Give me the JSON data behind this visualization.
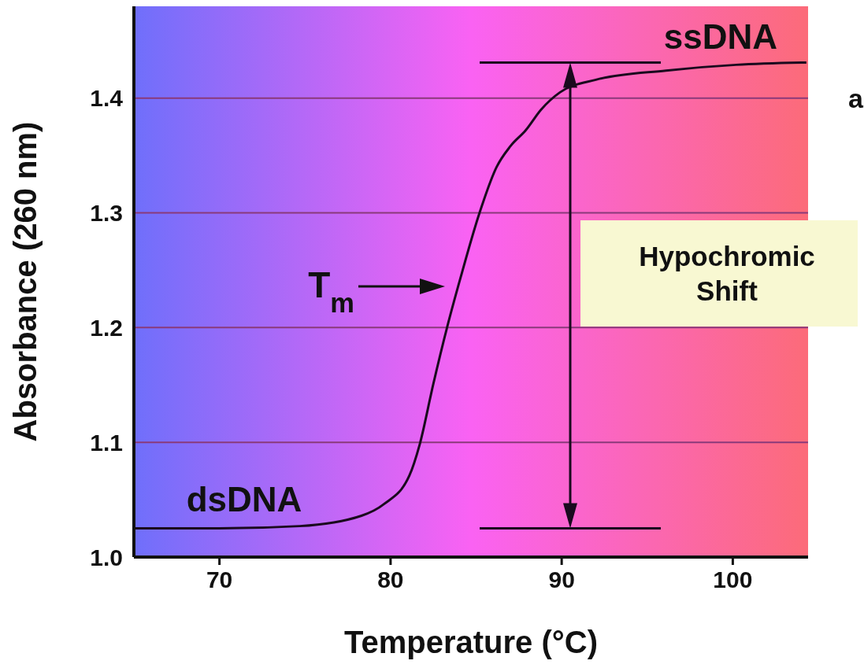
{
  "chart_data": {
    "type": "line",
    "xlabel": "Temperature (°C)",
    "ylabel": "Absorbance (260 nm)",
    "x": [
      65,
      70,
      74.7,
      78.3,
      79.6,
      81.1,
      81.7,
      82.5,
      83.3,
      84.1,
      85.2,
      86.2,
      87.0,
      87.9,
      88.8,
      89.9,
      92.0,
      96.1,
      100.2,
      104.3
    ],
    "series": [
      {
        "color": "#1a0a1e",
        "values": [
          1.025,
          1.025,
          1.027,
          1.036,
          1.046,
          1.071,
          1.098,
          1.151,
          1.2,
          1.244,
          1.3,
          1.34,
          1.358,
          1.372,
          1.39,
          1.405,
          1.416,
          1.424,
          1.429,
          1.431
        ]
      }
    ],
    "xlim": [
      65,
      104.4
    ],
    "ylim": [
      1.0,
      1.48
    ],
    "xticks": [
      70,
      80,
      90,
      100
    ],
    "yticks": [
      {
        "value": 1.0,
        "label": "1.0"
      },
      {
        "value": 1.1,
        "label": "1.1"
      },
      {
        "value": 1.2,
        "label": "1.2"
      },
      {
        "value": 1.3,
        "label": "1.3"
      },
      {
        "value": 1.4,
        "label": "1.4"
      }
    ],
    "grid": "y",
    "marker": "none",
    "line_style": "solid",
    "annotations": [
      "ssDNA",
      "dsDNA",
      "T$_{m}$",
      "Hypochromic Shift",
      "a"
    ]
  }
}
